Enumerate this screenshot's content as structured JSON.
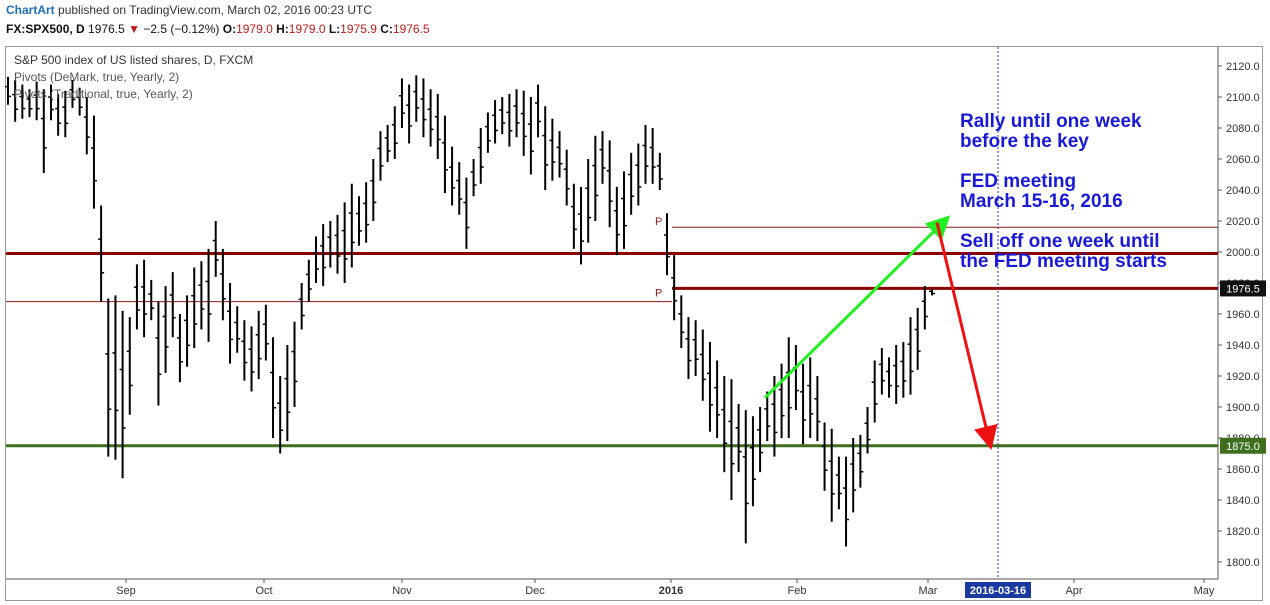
{
  "header": {
    "brand": "ChartArt",
    "published": "published on TradingView.com, March 02, 2016 00:23 UTC",
    "symbol": "FX:SPX500, D",
    "last": "1976.5",
    "change": "−2.5 (−0.12%)",
    "o_label": "O:",
    "o": "1979.0",
    "h_label": "H:",
    "h": "1979.0",
    "l_label": "L:",
    "l": "1975.9",
    "c_label": "C:",
    "c": "1976.5"
  },
  "legend": {
    "main": "S&P 500 index of US listed shares, D, FXCM",
    "pivots1": "Pivots (DeMark, true, Yearly, 2)",
    "pivots2": "Pivots (Traditional, true, Yearly, 2)"
  },
  "annotations": {
    "line1": "Rally until one week",
    "line2": "before the key",
    "line3": "FED meeting",
    "line4": "March 15-16, 2016",
    "line5": "Sell off one week until",
    "line6": "the FED meeting starts"
  },
  "chart_data": {
    "type": "bar",
    "title": "S&P 500 index of US listed shares, D, FXCM",
    "ylim": [
      1794,
      2131
    ],
    "y_ticks": [
      "1800.0",
      "1820.0",
      "1840.0",
      "1860.0",
      "1880.0",
      "1900.0",
      "1920.0",
      "1940.0",
      "1960.0",
      "1980.0",
      "2000.0",
      "2020.0",
      "2040.0",
      "2060.0",
      "2080.0",
      "2100.0",
      "2120.0"
    ],
    "x_labels": [
      "Sep",
      "Oct",
      "Nov",
      "Dec",
      "2016",
      "Feb",
      "Mar",
      "2016-03-16",
      "Apr",
      "May"
    ],
    "last_price_label": "1976.5",
    "support_label": "1875.0",
    "levels": [
      {
        "name": "resistance",
        "value": 1999,
        "color": "#8b0000"
      },
      {
        "name": "support",
        "value": 1875,
        "color": "#3e6e1e"
      },
      {
        "name": "pivot-2015",
        "value": 1968,
        "label": "P",
        "color": "#8b1a1a"
      },
      {
        "name": "pivot-2016-upper",
        "value": 2016,
        "label": "P",
        "color": "#8b1a1a"
      },
      {
        "name": "pivot-2016-lower",
        "value": 1976.5,
        "label": "",
        "color": "#8b0000"
      }
    ],
    "arrows": [
      {
        "name": "rally-arrow",
        "from": [
          "2016-01-20",
          1906
        ],
        "to": [
          "2016-03-01",
          2021
        ],
        "color": "#22ee22"
      },
      {
        "name": "selloff-arrow",
        "from": [
          "2016-03-01",
          2019
        ],
        "to": [
          "2016-03-16",
          1876
        ],
        "color": "#ee1111"
      }
    ],
    "series": [
      {
        "high_low": [
          [
            2113,
            2095
          ],
          [
            2111,
            2084
          ],
          [
            2108,
            2086
          ],
          [
            2105,
            2087
          ],
          [
            2110,
            2085
          ],
          [
            2105,
            2051
          ],
          [
            2108,
            2085
          ],
          [
            2102,
            2075
          ],
          [
            2104,
            2074
          ],
          [
            2111,
            2093
          ],
          [
            2106,
            2088
          ],
          [
            2100,
            2063
          ],
          [
            2088,
            2028
          ],
          [
            2030,
            1968
          ],
          [
            1970,
            1868
          ],
          [
            1972,
            1866
          ],
          [
            1962,
            1854
          ],
          [
            1958,
            1895
          ],
          [
            1992,
            1950
          ],
          [
            1995,
            1945
          ],
          [
            1982,
            1956
          ],
          [
            1968,
            1901
          ],
          [
            1978,
            1922
          ],
          [
            1987,
            1945
          ],
          [
            1960,
            1916
          ],
          [
            1972,
            1926
          ],
          [
            1990,
            1938
          ],
          [
            1994,
            1950
          ],
          [
            2002,
            1942
          ],
          [
            2020,
            1984
          ],
          [
            2002,
            1956
          ],
          [
            1980,
            1928
          ],
          [
            1965,
            1935
          ],
          [
            1956,
            1917
          ],
          [
            1952,
            1910
          ],
          [
            1962,
            1918
          ],
          [
            1966,
            1930
          ],
          [
            1945,
            1880
          ],
          [
            1920,
            1870
          ],
          [
            1940,
            1878
          ],
          [
            1955,
            1900
          ],
          [
            1980,
            1950
          ],
          [
            1995,
            1968
          ],
          [
            2010,
            1980
          ],
          [
            2018,
            1978
          ],
          [
            2020,
            1990
          ],
          [
            2024,
            1986
          ],
          [
            2032,
            1980
          ],
          [
            2044,
            1990
          ],
          [
            2036,
            2004
          ],
          [
            2045,
            2006
          ],
          [
            2060,
            2020
          ],
          [
            2078,
            2046
          ],
          [
            2082,
            2058
          ],
          [
            2094,
            2060
          ],
          [
            2112,
            2080
          ],
          [
            2108,
            2070
          ],
          [
            2114,
            2084
          ],
          [
            2112,
            2074
          ],
          [
            2105,
            2068
          ],
          [
            2102,
            2060
          ],
          [
            2088,
            2038
          ],
          [
            2068,
            2030
          ],
          [
            2058,
            2024
          ],
          [
            2048,
            2002
          ],
          [
            2060,
            2036
          ],
          [
            2080,
            2044
          ],
          [
            2090,
            2064
          ],
          [
            2098,
            2070
          ],
          [
            2100,
            2076
          ],
          [
            2102,
            2068
          ],
          [
            2105,
            2074
          ],
          [
            2104,
            2062
          ],
          [
            2100,
            2050
          ],
          [
            2108,
            2074
          ],
          [
            2094,
            2040
          ],
          [
            2086,
            2046
          ],
          [
            2078,
            2048
          ],
          [
            2066,
            2030
          ],
          [
            2044,
            2002
          ],
          [
            2042,
            1992
          ],
          [
            2060,
            2006
          ],
          [
            2075,
            2020
          ],
          [
            2078,
            2044
          ],
          [
            2072,
            2016
          ],
          [
            2042,
            1998
          ],
          [
            2052,
            2002
          ],
          [
            2064,
            2024
          ],
          [
            2070,
            2030
          ],
          [
            2082,
            2044
          ],
          [
            2080,
            2044
          ],
          [
            2064,
            2040
          ],
          [
            2025,
            1985
          ],
          [
            1998,
            1956
          ],
          [
            1972,
            1938
          ],
          [
            1958,
            1918
          ],
          [
            1956,
            1920
          ],
          [
            1950,
            1904
          ],
          [
            1942,
            1884
          ],
          [
            1930,
            1880
          ],
          [
            1920,
            1858
          ],
          [
            1918,
            1840
          ],
          [
            1902,
            1858
          ],
          [
            1898,
            1812
          ],
          [
            1894,
            1836
          ],
          [
            1900,
            1858
          ],
          [
            1910,
            1878
          ],
          [
            1920,
            1868
          ],
          [
            1928,
            1880
          ],
          [
            1945,
            1880
          ],
          [
            1940,
            1898
          ],
          [
            1928,
            1876
          ],
          [
            1932,
            1880
          ],
          [
            1920,
            1878
          ],
          [
            1890,
            1846
          ],
          [
            1886,
            1826
          ],
          [
            1868,
            1834
          ],
          [
            1868,
            1810
          ],
          [
            1880,
            1832
          ],
          [
            1882,
            1848
          ],
          [
            1900,
            1870
          ],
          [
            1930,
            1890
          ],
          [
            1938,
            1908
          ],
          [
            1932,
            1906
          ],
          [
            1940,
            1902
          ],
          [
            1942,
            1906
          ],
          [
            1958,
            1908
          ],
          [
            1964,
            1924
          ],
          [
            1978,
            1950
          ],
          [
            1976,
            1972
          ]
        ]
      }
    ]
  }
}
